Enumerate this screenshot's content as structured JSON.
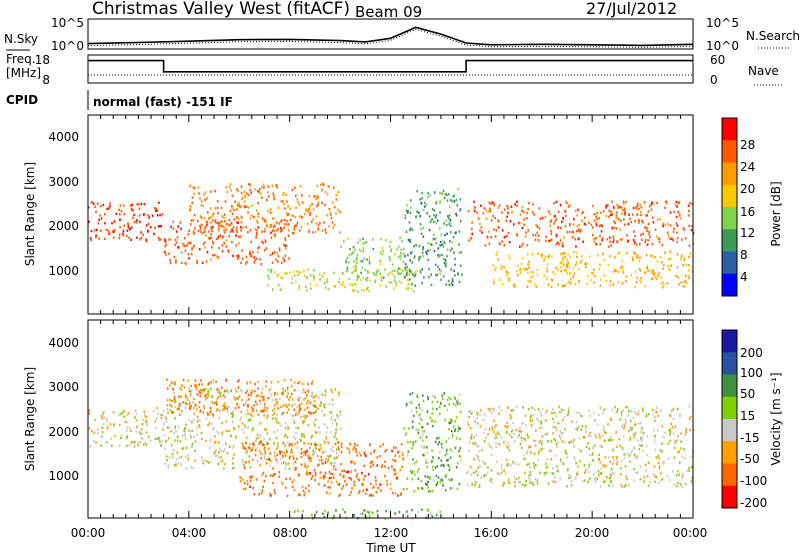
{
  "header": {
    "station": "Christmas Valley West (fitACF)",
    "beam": "Beam 09",
    "date": "27/Jul/2012"
  },
  "noise_panel": {
    "left_label": "N.Sky",
    "right_label": "N.Search",
    "left_ticks": [
      "10^5",
      "10^0"
    ],
    "right_ticks": [
      "10^5",
      "10^0"
    ]
  },
  "freq_panel": {
    "left_label_1": "Freq.",
    "left_label_2": "[MHz]",
    "right_label": "Nave",
    "left_ticks": [
      "18",
      "8"
    ],
    "right_ticks": [
      "60",
      "0"
    ]
  },
  "cpid": {
    "label": "CPID",
    "value": "normal (fast) -151 IF"
  },
  "power_panel": {
    "ylabel": "Slant Range [km]",
    "yticks": [
      "4000",
      "3000",
      "2000",
      "1000"
    ],
    "cbar_label": "Power [dB]",
    "cbar_ticks": [
      "28",
      "24",
      "20",
      "16",
      "12",
      "8",
      "4"
    ]
  },
  "velocity_panel": {
    "ylabel": "Slant Range [km]",
    "yticks": [
      "4000",
      "3000",
      "2000",
      "1000"
    ],
    "cbar_label": "Velocity [m s⁻¹]",
    "cbar_ticks": [
      "200",
      "100",
      "50",
      "15",
      "-15",
      "-50",
      "-100",
      "-200"
    ]
  },
  "time_axis": {
    "xlabel": "Time UT",
    "ticks": [
      "00:00",
      "04:00",
      "08:00",
      "12:00",
      "16:00",
      "20:00",
      "00:00"
    ]
  },
  "colors": {
    "power_scale": [
      "#ff0000",
      "#ff5a00",
      "#ff9900",
      "#ffc800",
      "#7fd34a",
      "#3f9a5a",
      "#2b5fa8",
      "#0000ff"
    ],
    "velocity_scale": [
      "#ff0000",
      "#ff6600",
      "#ffa000",
      "#c8c8c8",
      "#7fd000",
      "#3f8f3f",
      "#2a50a0",
      "#1a1aa0"
    ]
  },
  "chart_data": [
    {
      "type": "line",
      "title": "Christmas Valley West (fitACF)",
      "ylabel": "N.Sky / N.Search",
      "y_scale": "log",
      "ylim": [
        1,
        100000
      ],
      "xlim_hours": [
        0,
        24
      ],
      "series": [
        {
          "x_hours": [
            0,
            2,
            4,
            6,
            8,
            10,
            11,
            12,
            13,
            14,
            15,
            16,
            18,
            20,
            22,
            24
          ],
          "values": [
            8,
            12,
            20,
            35,
            40,
            25,
            15,
            60,
            4000,
            300,
            10,
            5,
            6,
            5,
            4,
            6
          ]
        }
      ]
    },
    {
      "type": "line",
      "ylabel": "Freq. [MHz]",
      "ylim": [
        8,
        18
      ],
      "xlim_hours": [
        0,
        24
      ],
      "series": [
        {
          "x_hours": [
            0,
            3,
            3,
            15,
            15,
            24
          ],
          "values": [
            16,
            16,
            12,
            12,
            16,
            16
          ]
        }
      ]
    },
    {
      "type": "heatmap",
      "ylabel": "Slant Range [km]",
      "zlabel": "Power [dB]",
      "ylim": [
        180,
        4600
      ],
      "zlim": [
        0,
        32
      ],
      "xlim_hours": [
        0,
        24
      ],
      "regions": [
        {
          "x_hours": [
            0,
            3
          ],
          "y_km": [
            1800,
            2700
          ],
          "value": 28
        },
        {
          "x_hours": [
            3,
            8
          ],
          "y_km": [
            1300,
            2300
          ],
          "value": 26
        },
        {
          "x_hours": [
            4,
            10
          ],
          "y_km": [
            2000,
            3100
          ],
          "value": 24
        },
        {
          "x_hours": [
            7,
            13
          ],
          "y_km": [
            700,
            1200
          ],
          "value": 16
        },
        {
          "x_hours": [
            10,
            12.5
          ],
          "y_km": [
            1000,
            1900
          ],
          "value": 14
        },
        {
          "x_hours": [
            12.5,
            14.8
          ],
          "y_km": [
            800,
            3000
          ],
          "value": 10
        },
        {
          "x_hours": [
            15,
            24
          ],
          "y_km": [
            1700,
            2700
          ],
          "value": 26
        },
        {
          "x_hours": [
            16,
            24
          ],
          "y_km": [
            800,
            1600
          ],
          "value": 20
        }
      ]
    },
    {
      "type": "heatmap",
      "ylabel": "Slant Range [km]",
      "zlabel": "Velocity [m s⁻¹]",
      "ylim": [
        180,
        4600
      ],
      "zlim": [
        -200,
        200
      ],
      "xlim_hours": [
        0,
        24
      ],
      "regions": [
        {
          "x_hours": [
            0,
            3
          ],
          "y_km": [
            1800,
            2700
          ],
          "value": 0
        },
        {
          "x_hours": [
            3,
            10
          ],
          "y_km": [
            1300,
            3100
          ],
          "value": 0
        },
        {
          "x_hours": [
            3,
            9
          ],
          "y_km": [
            2500,
            3300
          ],
          "value": -60
        },
        {
          "x_hours": [
            6,
            12.5
          ],
          "y_km": [
            700,
            1900
          ],
          "value": -70
        },
        {
          "x_hours": [
            12.5,
            14.8
          ],
          "y_km": [
            800,
            3000
          ],
          "value": 40
        },
        {
          "x_hours": [
            15,
            24
          ],
          "y_km": [
            900,
            2700
          ],
          "value": 0
        },
        {
          "x_hours": [
            8,
            14
          ],
          "y_km": [
            180,
            400
          ],
          "value": 40
        }
      ]
    }
  ]
}
